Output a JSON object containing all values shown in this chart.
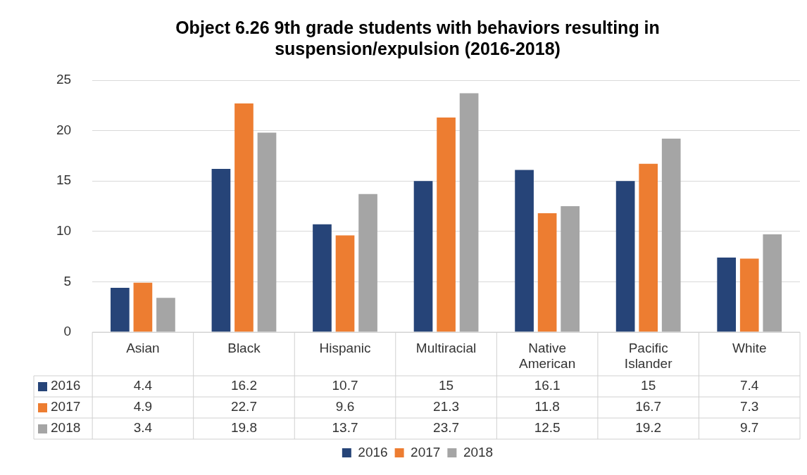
{
  "chart_data": {
    "type": "bar",
    "title": "Object 6.26 9th grade students with behaviors resulting in suspension/expulsion (2016-2018)",
    "categories": [
      "Asian",
      "Black",
      "Hispanic",
      "Multiracial",
      "Native American",
      "Pacific Islander",
      "White"
    ],
    "series": [
      {
        "name": "2016",
        "color": "#264478",
        "values": [
          4.4,
          16.2,
          10.7,
          15,
          16.1,
          15,
          7.4
        ]
      },
      {
        "name": "2017",
        "color": "#ed7d31",
        "values": [
          4.9,
          22.7,
          9.6,
          21.3,
          11.8,
          16.7,
          7.3
        ]
      },
      {
        "name": "2018",
        "color": "#a5a5a5",
        "values": [
          3.4,
          19.8,
          13.7,
          23.7,
          12.5,
          19.2,
          9.7
        ]
      }
    ],
    "ylim": [
      0,
      25
    ],
    "yticks": [
      0,
      5,
      10,
      15,
      20,
      25
    ],
    "grid": "y",
    "legend": "bottom",
    "data_labels": true
  }
}
